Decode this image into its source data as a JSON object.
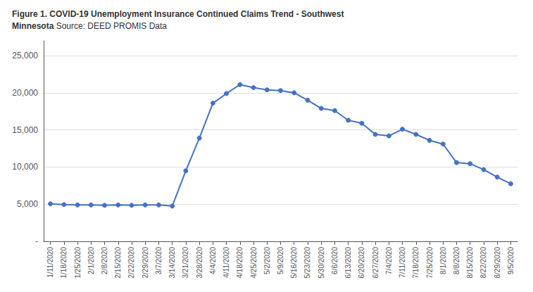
{
  "chart_data": {
    "type": "line",
    "title": "Figure 1. COVID-19 Unemployment Insurance Continued Claims Trend - Southwest\nMinnesota",
    "subtitle": "Source: DEED PROMIS Data",
    "categories": [
      "1/11/2020",
      "1/18/2020",
      "1/25/2020",
      "2/1/2020",
      "2/8/2020",
      "2/15/2020",
      "2/22/2020",
      "2/29/2020",
      "3/7/2020",
      "3/14/2020",
      "3/21/2020",
      "3/28/2020",
      "4/4/2020",
      "4/11/2020",
      "4/18/2020",
      "4/25/2020",
      "5/2/2020",
      "5/9/2020",
      "5/16/2020",
      "5/23/2020",
      "5/30/2020",
      "6/6/2020",
      "6/13/2020",
      "6/20/2020",
      "6/27/2020",
      "7/4/2020",
      "7/11/2020",
      "7/18/2020",
      "7/25/2020",
      "8/1/2020",
      "8/8/2020",
      "8/15/2020",
      "8/22/2020",
      "8/29/2020",
      "9/5/2020"
    ],
    "values": [
      5050,
      4950,
      4900,
      4900,
      4850,
      4900,
      4850,
      4900,
      4900,
      4750,
      9500,
      13900,
      18600,
      19900,
      21100,
      20700,
      20400,
      20300,
      20000,
      19000,
      17900,
      17600,
      16300,
      15900,
      14400,
      14200,
      15100,
      14400,
      13600,
      13100,
      10600,
      10450,
      9650,
      8650,
      7750
    ],
    "color": "#4472C4",
    "marker": "circle",
    "ylim": [
      0,
      27000
    ],
    "yticks": [
      {
        "value": 0,
        "label": "-"
      },
      {
        "value": 5000,
        "label": "5,000"
      },
      {
        "value": 10000,
        "label": "10,000"
      },
      {
        "value": 15000,
        "label": "15,000"
      },
      {
        "value": 20000,
        "label": "20,000"
      },
      {
        "value": 25000,
        "label": "25,000"
      }
    ],
    "grid": true
  }
}
